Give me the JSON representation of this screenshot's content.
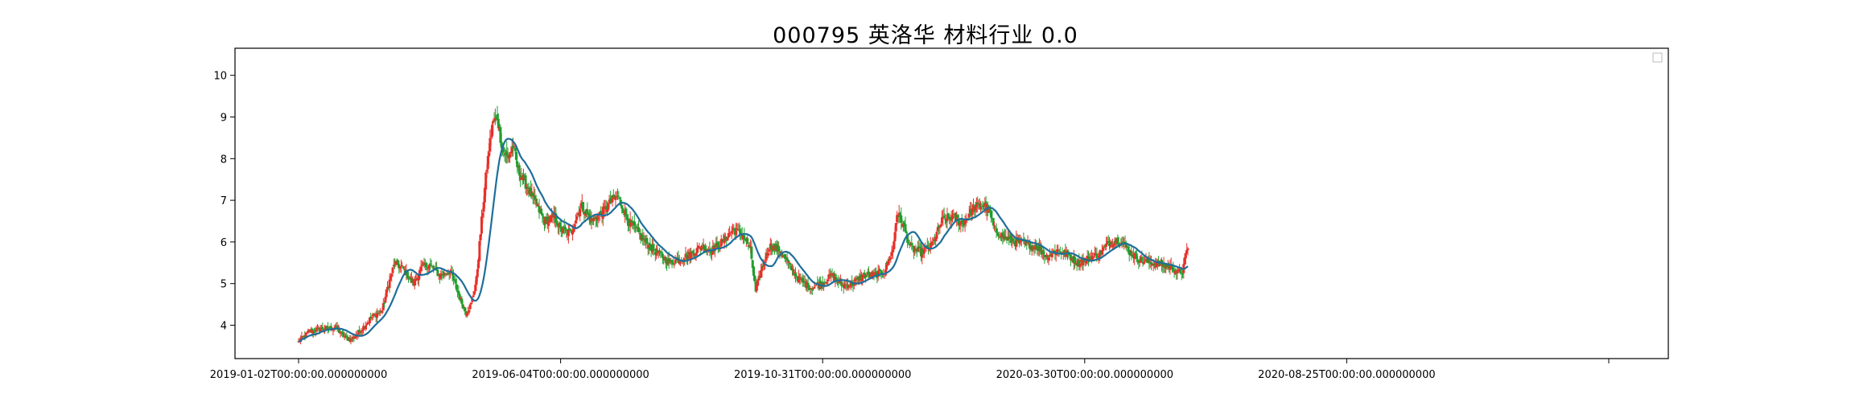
{
  "chart_data": {
    "type": "candlestick",
    "title": "000795 英洛华 材料行业 0.0",
    "xlabel": "",
    "ylabel": "",
    "x_tick_labels": [
      "2019-01-02T00:00:00.000000000",
      "2019-06-04T00:00:00.000000000",
      "2019-10-31T00:00:00.000000000",
      "2020-03-30T00:00:00.000000000",
      "2020-08-25T00:00:00.000000000",
      ""
    ],
    "y_ticks": [
      4,
      5,
      6,
      7,
      8,
      9,
      10
    ],
    "ylim": [
      3.2,
      10.65
    ],
    "bar_count": 500,
    "grid": false,
    "legend": "top-right, empty",
    "up_color": "#e8302a",
    "down_color": "#1f9e2c",
    "ma_color": "#1f6e9a",
    "close_trend": [
      [
        0,
        3.6
      ],
      [
        10,
        3.85
      ],
      [
        20,
        3.9
      ],
      [
        35,
        3.95
      ],
      [
        45,
        3.7
      ],
      [
        50,
        3.65
      ],
      [
        60,
        3.9
      ],
      [
        70,
        4.2
      ],
      [
        80,
        4.35
      ],
      [
        85,
        4.9
      ],
      [
        92,
        5.5
      ],
      [
        100,
        5.35
      ],
      [
        110,
        5.0
      ],
      [
        118,
        5.4
      ],
      [
        125,
        5.45
      ],
      [
        135,
        5.2
      ],
      [
        145,
        5.3
      ],
      [
        155,
        4.6
      ],
      [
        160,
        4.3
      ],
      [
        165,
        4.5
      ],
      [
        170,
        5.1
      ],
      [
        175,
        6.5
      ],
      [
        180,
        7.8
      ],
      [
        185,
        8.8
      ],
      [
        190,
        9.0
      ],
      [
        195,
        8.2
      ],
      [
        200,
        8.0
      ],
      [
        205,
        8.3
      ],
      [
        210,
        7.7
      ],
      [
        215,
        7.5
      ],
      [
        225,
        7.0
      ],
      [
        235,
        6.5
      ],
      [
        245,
        6.6
      ],
      [
        250,
        6.3
      ],
      [
        260,
        6.2
      ],
      [
        270,
        6.9
      ],
      [
        280,
        6.5
      ],
      [
        290,
        6.7
      ],
      [
        300,
        7.0
      ],
      [
        305,
        7.1
      ],
      [
        315,
        6.5
      ],
      [
        325,
        6.2
      ],
      [
        335,
        5.9
      ],
      [
        345,
        5.7
      ],
      [
        355,
        5.5
      ],
      [
        365,
        5.6
      ],
      [
        375,
        5.7
      ],
      [
        385,
        5.9
      ],
      [
        395,
        5.8
      ],
      [
        405,
        6.0
      ],
      [
        415,
        6.3
      ],
      [
        425,
        6.15
      ],
      [
        432,
        5.8
      ],
      [
        437,
        4.8
      ],
      [
        442,
        5.3
      ],
      [
        450,
        5.9
      ],
      [
        460,
        5.8
      ],
      [
        470,
        5.4
      ],
      [
        478,
        5.1
      ],
      [
        490,
        4.9
      ],
      [
        500,
        5.0
      ],
      [
        510,
        5.2
      ],
      [
        520,
        4.95
      ],
      [
        530,
        5.0
      ],
      [
        540,
        5.2
      ],
      [
        550,
        5.2
      ],
      [
        560,
        5.3
      ],
      [
        568,
        5.8
      ],
      [
        572,
        6.7
      ],
      [
        578,
        6.4
      ],
      [
        585,
        5.85
      ],
      [
        595,
        5.75
      ],
      [
        605,
        5.9
      ],
      [
        615,
        6.5
      ],
      [
        625,
        6.6
      ],
      [
        635,
        6.45
      ],
      [
        645,
        6.8
      ],
      [
        655,
        6.9
      ],
      [
        660,
        6.75
      ],
      [
        665,
        6.3
      ],
      [
        675,
        6.1
      ],
      [
        685,
        6.0
      ],
      [
        695,
        5.95
      ],
      [
        705,
        5.9
      ],
      [
        715,
        5.65
      ],
      [
        725,
        5.8
      ],
      [
        735,
        5.7
      ],
      [
        745,
        5.5
      ],
      [
        755,
        5.6
      ],
      [
        765,
        5.7
      ],
      [
        775,
        6.0
      ],
      [
        785,
        6.05
      ],
      [
        795,
        5.75
      ],
      [
        805,
        5.55
      ],
      [
        815,
        5.5
      ],
      [
        825,
        5.45
      ],
      [
        835,
        5.4
      ],
      [
        840,
        5.25
      ],
      [
        845,
        5.3
      ],
      [
        850,
        5.9
      ]
    ]
  }
}
